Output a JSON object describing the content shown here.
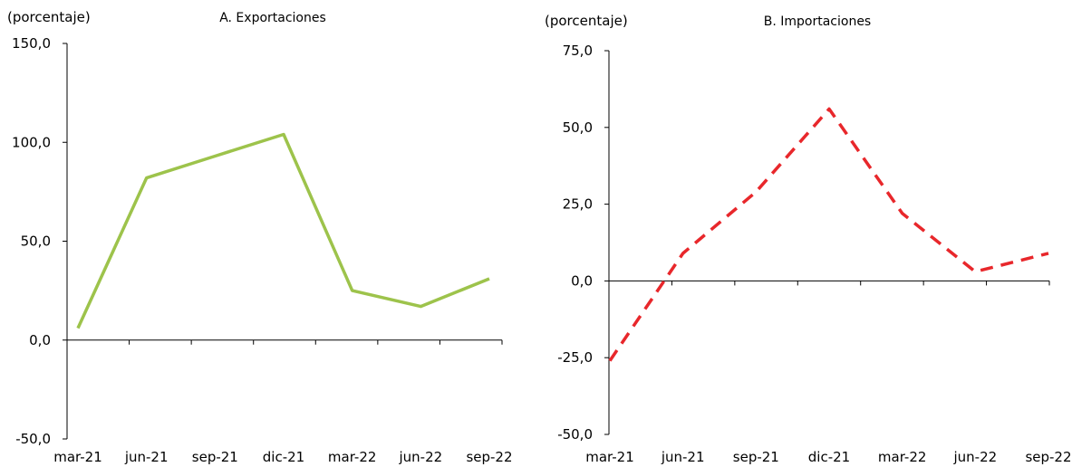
{
  "chart_data": [
    {
      "type": "line",
      "title": "A. Exportaciones",
      "ylabel": "(porcentaje)",
      "xlabel": "",
      "categories": [
        "mar-21",
        "jun-21",
        "sep-21",
        "dic-21",
        "mar-22",
        "jun-22",
        "sep-22"
      ],
      "ylim": [
        -50,
        150
      ],
      "yticks": [
        150,
        100,
        50,
        0,
        -50
      ],
      "ytick_labels": [
        "150,0",
        "100,0",
        "50,0",
        "0,0",
        "-50,0"
      ],
      "series": [
        {
          "values": [
            6,
            82,
            93,
            104,
            25,
            17,
            31
          ],
          "color": "#9dc34b",
          "style": "solid"
        }
      ],
      "grid": false,
      "legend": "none"
    },
    {
      "type": "line",
      "title": "B. Importaciones",
      "ylabel": "(porcentaje)",
      "xlabel": "",
      "categories": [
        "mar-21",
        "jun-21",
        "sep-21",
        "dic-21",
        "mar-22",
        "jun-22",
        "sep-22"
      ],
      "ylim": [
        -50,
        75
      ],
      "yticks": [
        75,
        50,
        25,
        0,
        -25,
        -50
      ],
      "ytick_labels": [
        "75,0",
        "50,0",
        "25,0",
        "0,0",
        "-25,0",
        "-50,0"
      ],
      "series": [
        {
          "values": [
            -26,
            9,
            29,
            56,
            22,
            3,
            9
          ],
          "color": "#e8272b",
          "style": "dashed"
        }
      ],
      "grid": false,
      "legend": "none"
    }
  ]
}
